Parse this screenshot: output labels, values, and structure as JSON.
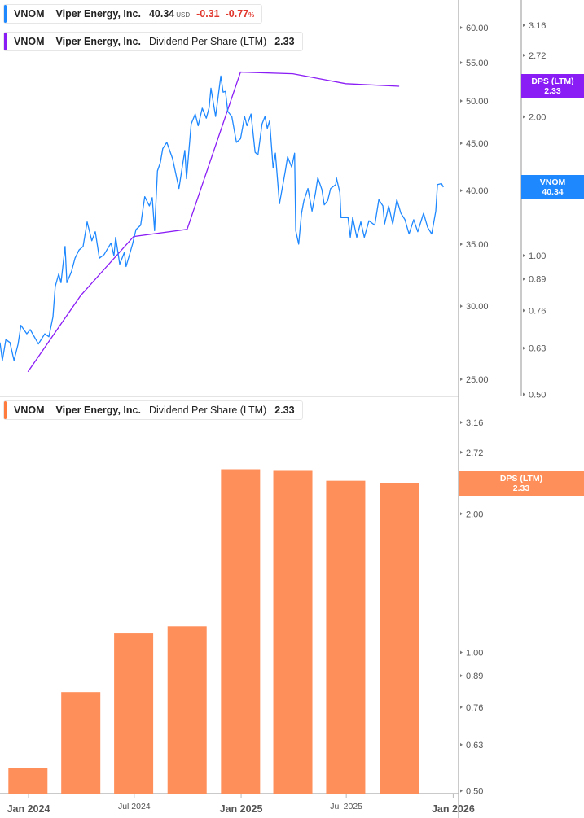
{
  "legends": {
    "price": {
      "symbol": "VNOM",
      "name": "Viper Energy, Inc.",
      "value": "40.34",
      "currency": "USD",
      "change": "-0.31",
      "change_pct": "-0.77",
      "pct_sign": "%"
    },
    "dps_top": {
      "symbol": "VNOM",
      "name": "Viper Energy, Inc.",
      "metric": "Dividend Per Share (LTM)",
      "value": "2.33"
    },
    "dps_bottom": {
      "symbol": "VNOM",
      "name": "Viper Energy, Inc.",
      "metric": "Dividend Per Share (LTM)",
      "value": "2.33"
    }
  },
  "badges": {
    "price": {
      "line1": "VNOM",
      "line2": "40.34"
    },
    "dps_top": {
      "line1": "DPS (LTM)",
      "line2": "2.33"
    },
    "dps_bottom": {
      "line1": "DPS (LTM)",
      "line2": "2.33"
    }
  },
  "colors": {
    "price": "#1e88ff",
    "dps_line": "#8a1cf5",
    "dps_bar": "#ff8f5a",
    "axis": "#b8b8b8",
    "tick_text": "#555555",
    "negative": "#e0362c"
  },
  "chart_data": [
    {
      "type": "line",
      "panel": "top",
      "x_axis": {
        "type": "date",
        "ticks": [
          {
            "date": "2024-01-01",
            "label": "Jan 2024",
            "major": true
          },
          {
            "date": "2024-07-01",
            "label": "Jul 2024",
            "major": false
          },
          {
            "date": "2025-01-01",
            "label": "Jan 2025",
            "major": true
          },
          {
            "date": "2025-07-01",
            "label": "Jul 2025",
            "major": false
          },
          {
            "date": "2026-01-01",
            "label": "Jan 2026",
            "major": true
          }
        ]
      },
      "y_axis_price": {
        "scale": "log",
        "ticks": [
          "60.00",
          "55.00",
          "50.00",
          "45.00",
          "40.00",
          "35.00",
          "30.00",
          "25.00"
        ]
      },
      "y_axis_dps": {
        "scale": "log",
        "ticks": [
          "3.16",
          "2.72",
          "2.00",
          "1.00",
          "0.89",
          "0.76",
          "0.63",
          "0.50"
        ]
      },
      "series": [
        {
          "name": "VNOM",
          "axis": "price",
          "points": [
            [
              "2023-11-13",
              27.4
            ],
            [
              "2023-11-17",
              26.2
            ],
            [
              "2023-11-23",
              27.6
            ],
            [
              "2023-11-30",
              27.4
            ],
            [
              "2023-12-07",
              26.2
            ],
            [
              "2023-12-14",
              27.3
            ],
            [
              "2023-12-19",
              28.6
            ],
            [
              "2023-12-29",
              28.0
            ],
            [
              "2024-01-04",
              28.3
            ],
            [
              "2024-01-18",
              27.3
            ],
            [
              "2024-01-29",
              28.0
            ],
            [
              "2024-02-05",
              27.8
            ],
            [
              "2024-02-12",
              29.2
            ],
            [
              "2024-02-16",
              31.5
            ],
            [
              "2024-02-22",
              32.5
            ],
            [
              "2024-02-26",
              31.8
            ],
            [
              "2024-03-04",
              34.8
            ],
            [
              "2024-03-07",
              31.8
            ],
            [
              "2024-03-15",
              32.7
            ],
            [
              "2024-03-21",
              33.8
            ],
            [
              "2024-03-28",
              34.5
            ],
            [
              "2024-04-04",
              34.8
            ],
            [
              "2024-04-11",
              37.0
            ],
            [
              "2024-04-19",
              35.3
            ],
            [
              "2024-04-25",
              36.1
            ],
            [
              "2024-05-02",
              33.8
            ],
            [
              "2024-05-10",
              34.1
            ],
            [
              "2024-05-22",
              35.1
            ],
            [
              "2024-05-27",
              34.0
            ],
            [
              "2024-05-30",
              35.6
            ],
            [
              "2024-06-06",
              33.3
            ],
            [
              "2024-06-14",
              34.3
            ],
            [
              "2024-06-17",
              33.1
            ],
            [
              "2024-06-28",
              35.0
            ],
            [
              "2024-07-04",
              36.3
            ],
            [
              "2024-07-12",
              36.7
            ],
            [
              "2024-07-19",
              39.4
            ],
            [
              "2024-07-27",
              38.5
            ],
            [
              "2024-08-01",
              39.3
            ],
            [
              "2024-08-05",
              36.2
            ],
            [
              "2024-08-10",
              42.0
            ],
            [
              "2024-08-15",
              42.9
            ],
            [
              "2024-08-19",
              44.4
            ],
            [
              "2024-08-26",
              45.1
            ],
            [
              "2024-09-05",
              43.3
            ],
            [
              "2024-09-16",
              40.2
            ],
            [
              "2024-09-26",
              44.2
            ],
            [
              "2024-09-29",
              41.2
            ],
            [
              "2024-10-07",
              47.2
            ],
            [
              "2024-10-14",
              48.4
            ],
            [
              "2024-10-19",
              47.0
            ],
            [
              "2024-10-26",
              49.1
            ],
            [
              "2024-11-02",
              47.9
            ],
            [
              "2024-11-07",
              49.2
            ],
            [
              "2024-11-10",
              51.6
            ],
            [
              "2024-11-18",
              48.1
            ],
            [
              "2024-11-27",
              53.2
            ],
            [
              "2024-12-01",
              51.1
            ],
            [
              "2024-12-05",
              51.2
            ],
            [
              "2024-12-09",
              48.7
            ],
            [
              "2024-12-16",
              48.1
            ],
            [
              "2024-12-24",
              45.1
            ],
            [
              "2024-12-31",
              45.5
            ],
            [
              "2025-01-07",
              48.1
            ],
            [
              "2025-01-11",
              47.0
            ],
            [
              "2025-01-18",
              48.4
            ],
            [
              "2025-01-25",
              44.0
            ],
            [
              "2025-01-30",
              43.7
            ],
            [
              "2025-02-06",
              47.2
            ],
            [
              "2025-02-11",
              48.1
            ],
            [
              "2025-02-15",
              46.7
            ],
            [
              "2025-02-19",
              47.6
            ],
            [
              "2025-02-25",
              42.3
            ],
            [
              "2025-03-01",
              43.9
            ],
            [
              "2025-03-08",
              38.7
            ],
            [
              "2025-03-13",
              40.3
            ],
            [
              "2025-03-18",
              42.0
            ],
            [
              "2025-03-22",
              43.5
            ],
            [
              "2025-03-29",
              42.4
            ],
            [
              "2025-04-03",
              43.9
            ],
            [
              "2025-04-05",
              36.2
            ],
            [
              "2025-04-10",
              35.0
            ],
            [
              "2025-04-15",
              37.8
            ],
            [
              "2025-04-19",
              39.0
            ],
            [
              "2025-04-26",
              40.2
            ],
            [
              "2025-05-03",
              38.0
            ],
            [
              "2025-05-09",
              39.8
            ],
            [
              "2025-05-13",
              41.3
            ],
            [
              "2025-05-20",
              40.1
            ],
            [
              "2025-05-24",
              38.6
            ],
            [
              "2025-05-30",
              39.0
            ],
            [
              "2025-06-04",
              40.2
            ],
            [
              "2025-06-13",
              40.6
            ],
            [
              "2025-06-14",
              41.3
            ],
            [
              "2025-06-20",
              39.8
            ],
            [
              "2025-06-22",
              37.4
            ],
            [
              "2025-07-04",
              37.4
            ],
            [
              "2025-07-08",
              35.6
            ],
            [
              "2025-07-12",
              37.4
            ],
            [
              "2025-07-19",
              35.6
            ],
            [
              "2025-07-26",
              37.0
            ],
            [
              "2025-08-01",
              35.6
            ],
            [
              "2025-08-09",
              37.1
            ],
            [
              "2025-08-19",
              36.7
            ],
            [
              "2025-08-26",
              39.1
            ],
            [
              "2025-09-02",
              38.5
            ],
            [
              "2025-09-05",
              36.8
            ],
            [
              "2025-09-12",
              38.5
            ],
            [
              "2025-09-19",
              36.8
            ],
            [
              "2025-09-26",
              39.1
            ],
            [
              "2025-10-03",
              37.8
            ],
            [
              "2025-10-10",
              37.2
            ],
            [
              "2025-10-17",
              35.9
            ],
            [
              "2025-10-25",
              37.2
            ],
            [
              "2025-11-01",
              36.1
            ],
            [
              "2025-11-11",
              37.8
            ],
            [
              "2025-11-18",
              36.5
            ],
            [
              "2025-11-25",
              35.9
            ],
            [
              "2025-12-02",
              38.0
            ],
            [
              "2025-12-05",
              40.6
            ],
            [
              "2025-12-12",
              40.7
            ],
            [
              "2025-12-15",
              40.34
            ]
          ]
        },
        {
          "name": "Dividend Per Share (LTM)",
          "axis": "dps",
          "points": [
            [
              "2023-12-31",
              0.56
            ],
            [
              "2024-03-31",
              0.82
            ],
            [
              "2024-06-30",
              1.1
            ],
            [
              "2024-09-30",
              1.14
            ],
            [
              "2024-12-31",
              2.5
            ],
            [
              "2025-03-31",
              2.48
            ],
            [
              "2025-06-30",
              2.36
            ],
            [
              "2025-09-30",
              2.33
            ]
          ]
        }
      ]
    },
    {
      "type": "bar",
      "panel": "bottom",
      "y_axis": {
        "scale": "log",
        "ticks": [
          "3.16",
          "2.72",
          "2.00",
          "1.00",
          "0.89",
          "0.76",
          "0.63",
          "0.50"
        ]
      },
      "series": [
        {
          "name": "Dividend Per Share (LTM)",
          "points": [
            [
              "2023-12-31",
              0.56
            ],
            [
              "2024-03-31",
              0.82
            ],
            [
              "2024-06-30",
              1.1
            ],
            [
              "2024-09-30",
              1.14
            ],
            [
              "2024-12-31",
              2.5
            ],
            [
              "2025-03-31",
              2.48
            ],
            [
              "2025-06-30",
              2.36
            ],
            [
              "2025-09-30",
              2.33
            ]
          ]
        }
      ]
    }
  ]
}
